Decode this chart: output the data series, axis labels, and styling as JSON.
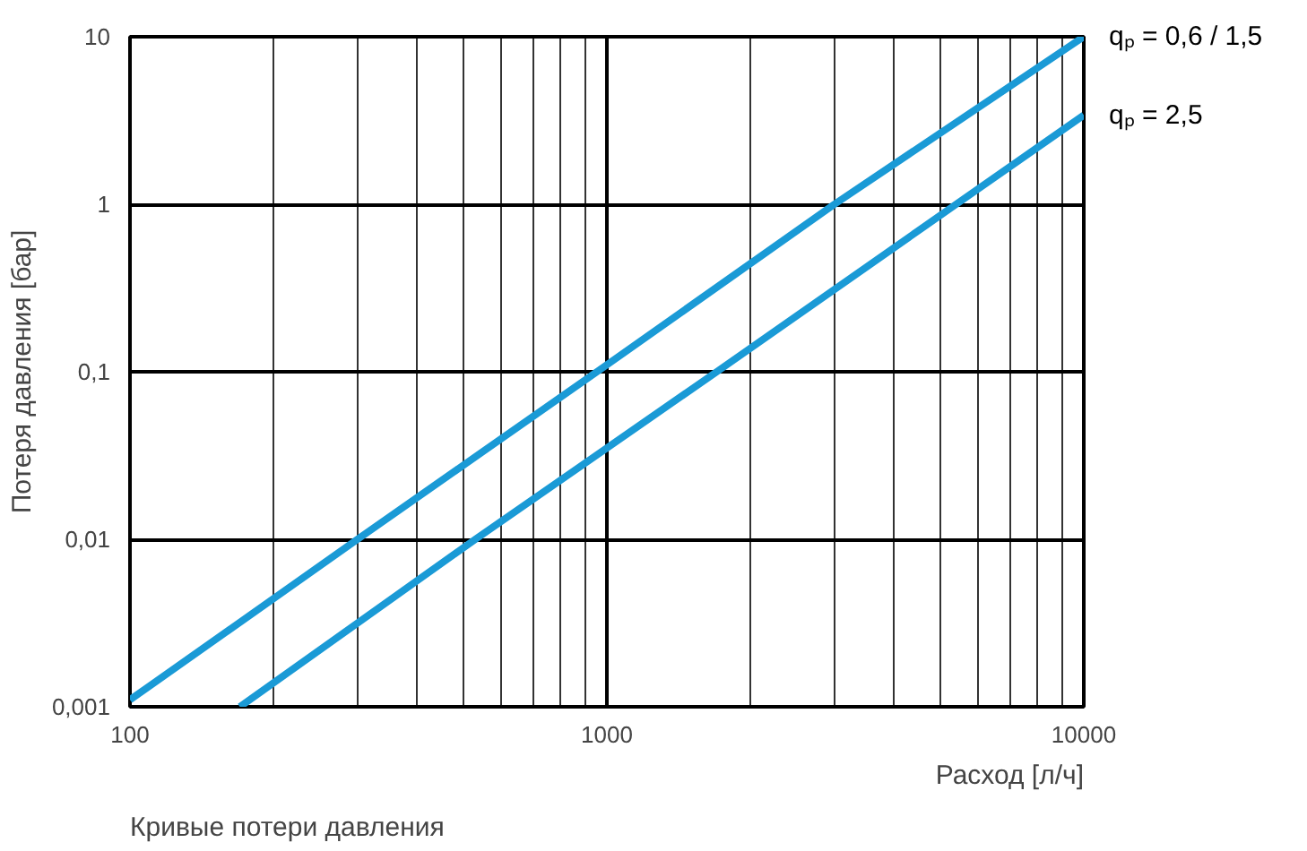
{
  "chart_data": {
    "type": "line",
    "xlabel": "Расход [л/ч]",
    "ylabel": "Потеря давления [бар]",
    "annotations": [
      "Кривые потери давления"
    ],
    "log": "xy",
    "grid": true,
    "marker": "none",
    "line_style": "solid",
    "xlim": [
      100,
      10000
    ],
    "ylim": [
      0.001,
      10
    ],
    "xticks": [
      100,
      1000,
      10000
    ],
    "yticks": [
      {
        "value": 0.001,
        "label": "0,001"
      },
      {
        "value": 0.01,
        "label": "0,01"
      },
      {
        "value": 0.1,
        "label": "0,1"
      },
      1,
      10
    ],
    "series": [
      {
        "name": "qₚ = 0,6 / 1,5",
        "color": "#1a9ad6",
        "x": [
          100,
          300,
          1000,
          3000,
          10000
        ],
        "values": [
          0.0011,
          0.01,
          0.11,
          1,
          10
        ]
      },
      {
        "name": "qₚ = 2,5",
        "color": "#1a9ad6",
        "x": [
          170,
          530,
          1700,
          5400,
          10000
        ],
        "values": [
          0.001,
          0.01,
          0.1,
          1,
          3.4
        ]
      }
    ]
  }
}
